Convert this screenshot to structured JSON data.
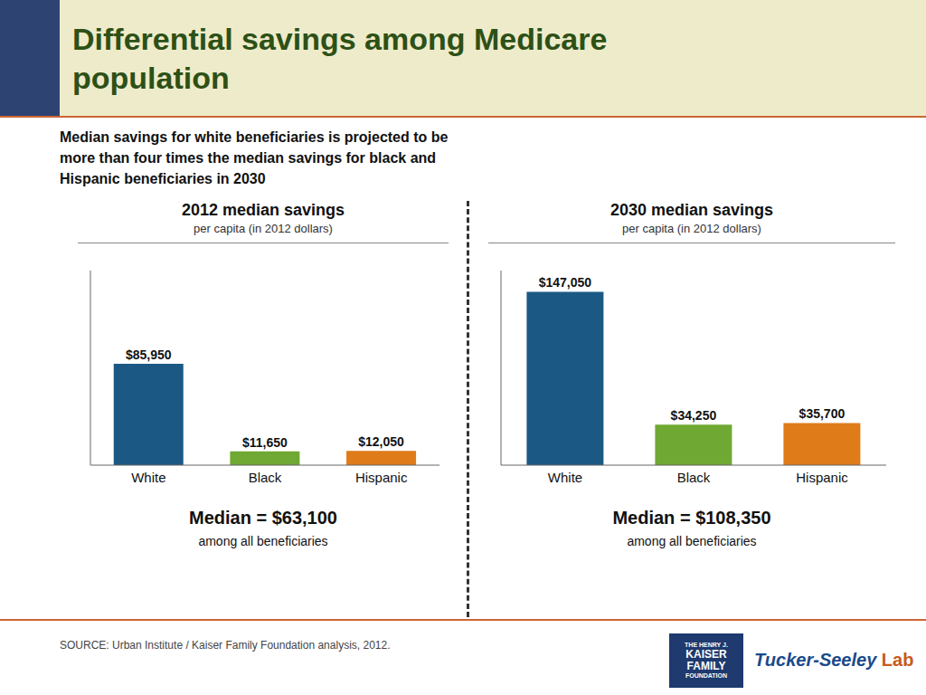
{
  "title": "Differential savings among Medicare\npopulation",
  "subtitle": "Median savings for white beneficiaries is projected to be\nmore than four times the median savings for black and\nHispanic beneficiaries in 2030",
  "annotations": [
    "SOURCE: Urban Institute / Kaiser Family Foundation analysis, 2012.",
    "THE HENRY J.",
    "KAISER",
    "FAMILY",
    "FOUNDATION",
    "Tucker-Seeley",
    "Lab"
  ],
  "chart_data": [
    {
      "type": "bar",
      "title": "2012 median savings",
      "subtitle": "per capita (in 2012 dollars)",
      "categories": [
        "White",
        "Black",
        "Hispanic"
      ],
      "values": [
        85950,
        11650,
        12050
      ],
      "value_labels": [
        "$85,950",
        "$11,650",
        "$12,050"
      ],
      "data_labels": true,
      "colors": [
        "#1b5984",
        "#6fa832",
        "#e07b1a"
      ],
      "ylim": [
        0,
        165000
      ],
      "tick_labels": "x",
      "grid": false,
      "annotations": [
        "Median = $63,100",
        "among all beneficiaries"
      ]
    },
    {
      "type": "bar",
      "title": "2030 median savings",
      "subtitle": "per capita (in 2012 dollars)",
      "categories": [
        "White",
        "Black",
        "Hispanic"
      ],
      "values": [
        147050,
        34250,
        35700
      ],
      "value_labels": [
        "$147,050",
        "$34,250",
        "$35,700"
      ],
      "data_labels": true,
      "colors": [
        "#1b5984",
        "#6fa832",
        "#e07b1a"
      ],
      "ylim": [
        0,
        165000
      ],
      "tick_labels": "x",
      "grid": false,
      "annotations": [
        "Median = $108,350",
        "among all beneficiaries"
      ]
    }
  ]
}
